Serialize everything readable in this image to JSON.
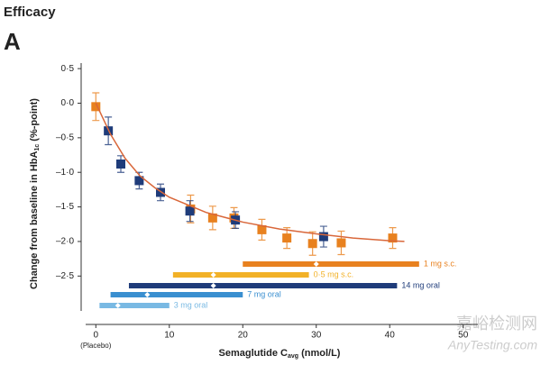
{
  "chart_data": {
    "type": "scatter",
    "title": "Efficacy",
    "panel": "A",
    "ylabel": {
      "text": "Change from baseline in HbA",
      "sub": "1c",
      "tail": " (%-point)"
    },
    "xlabel": {
      "text": "Semaglutide C",
      "sub": "avg",
      "tail": " (nmol/L)"
    },
    "x_note": "(Placebo)",
    "xlim": [
      -2,
      52
    ],
    "ylim": [
      -3.2,
      0.58
    ],
    "xticks": [
      0,
      10,
      20,
      30,
      40,
      50
    ],
    "yticks": [
      {
        "value": 0.5,
        "label": "0·5"
      },
      {
        "value": 0,
        "label": "0·0"
      },
      {
        "value": -0.5,
        "label": "–0·5"
      },
      {
        "value": -1,
        "label": "–1·0"
      },
      {
        "value": -1.5,
        "label": "–1·5"
      },
      {
        "value": -2,
        "label": "–2·0"
      },
      {
        "value": -2.5,
        "label": "–2·5"
      }
    ],
    "series": [
      {
        "color": "#e8811f",
        "x": [
          0,
          12.9,
          15.9,
          18.8,
          22.6,
          26,
          29.5,
          33.4,
          40.4
        ],
        "values": [
          -0.05,
          -1.53,
          -1.66,
          -1.66,
          -1.83,
          -1.95,
          -2.03,
          -2.02,
          -1.95
        ],
        "errors": [
          0.2,
          0.2,
          0.17,
          0.15,
          0.15,
          0.15,
          0.17,
          0.17,
          0.15
        ]
      },
      {
        "color": "#1f3c7a",
        "x": [
          1.7,
          3.4,
          5.9,
          8.8,
          12.8,
          19,
          31
        ],
        "values": [
          -0.4,
          -0.88,
          -1.12,
          -1.29,
          -1.56,
          -1.69,
          -1.93
        ],
        "errors": [
          0.2,
          0.12,
          0.12,
          0.12,
          0.15,
          0.12,
          0.15
        ]
      }
    ],
    "fit": {
      "color": "#d9673a",
      "x": [
        0,
        2,
        4,
        6,
        8,
        10,
        15,
        20,
        25,
        30,
        35,
        40,
        42
      ],
      "values": [
        0,
        -0.45,
        -0.8,
        -1.05,
        -1.22,
        -1.36,
        -1.58,
        -1.72,
        -1.82,
        -1.89,
        -1.95,
        -1.99,
        -2.0
      ]
    },
    "ranges": [
      {
        "label": "1 mg s.c.",
        "color": "#e8811f",
        "start": 20,
        "end": 44,
        "median": 30
      },
      {
        "label": "0·5 mg s.c.",
        "color": "#f2b127",
        "start": 10.5,
        "end": 29,
        "median": 16
      },
      {
        "label": "14 mg oral",
        "color": "#1f3c7a",
        "start": 4.5,
        "end": 41,
        "median": 16
      },
      {
        "label": "7 mg oral",
        "color": "#3a8fd0",
        "start": 2,
        "end": 20,
        "median": 7
      },
      {
        "label": "3 mg oral",
        "color": "#79b9e3",
        "start": 0.5,
        "end": 10,
        "median": 3
      }
    ],
    "watermark": [
      "嘉峪检测网",
      "AnyTesting.com"
    ]
  }
}
